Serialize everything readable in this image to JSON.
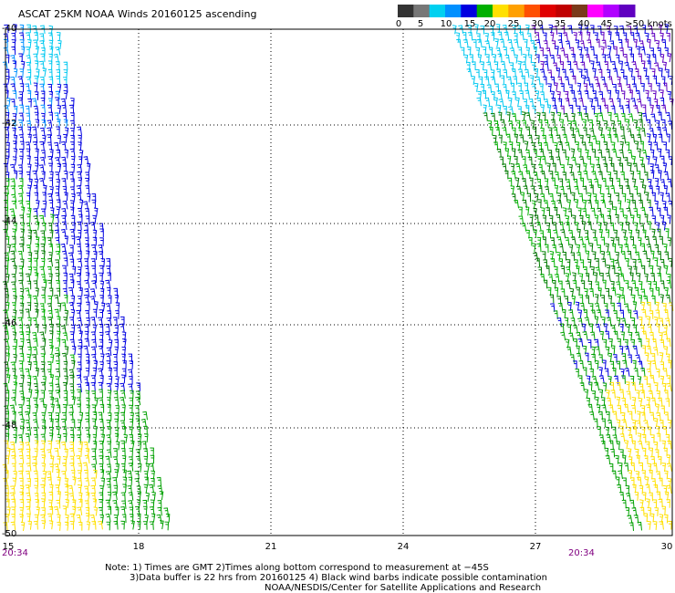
{
  "title": "ASCAT 25KM NOAA Winds 20160125 ascending",
  "colorbar": {
    "labels": [
      "0",
      "5",
      "10",
      "15",
      "20",
      "25",
      "30",
      "35",
      "40",
      "45",
      ">50 knots"
    ],
    "colors": [
      "#333333",
      "#777777",
      "#00d0f0",
      "#0090ff",
      "#0000e0",
      "#00b000",
      "#ffe000",
      "#ffa000",
      "#ff5000",
      "#e00000",
      "#c00000",
      "#7a3a1a",
      "#ff00ff",
      "#b000ff",
      "#6000c0"
    ]
  },
  "axes": {
    "lat_labels": [
      "-40",
      "-42",
      "-44",
      "-46",
      "-48",
      "-50"
    ],
    "lon_labels": [
      "15",
      "18",
      "21",
      "24",
      "27",
      "30"
    ]
  },
  "times": {
    "left": "20:34",
    "right": "20:34"
  },
  "notes": {
    "line1": "Note: 1) Times are GMT 2)Times along bottom correspond to measurement at −45S",
    "line2": "3)Data buffer is 22 hrs from 20160125 4) Black wind barbs indicate possible contamination",
    "line3": "NOAA/NESDIS/Center for Satellite Applications and Research"
  }
}
